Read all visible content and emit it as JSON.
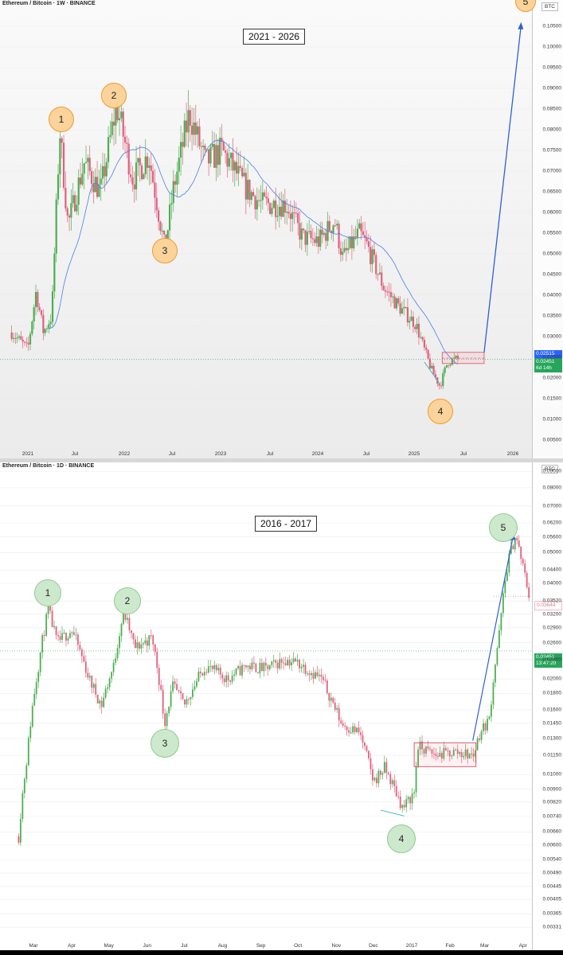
{
  "panels": [
    {
      "header": "Ethereum / Bitcoin · 1W · BINANCE",
      "range_label": "2021 - 2026",
      "unit": "BTC",
      "last_price": "0.02515",
      "current_price": "0.02451",
      "countdown": "6d 14h",
      "wave_labels": [
        "1",
        "2",
        "3",
        "4",
        "5"
      ]
    },
    {
      "header": "Ethereum / Bitcoin · 1D · BINANCE",
      "range_label": "2016 - 2017",
      "unit": "BTC",
      "last_price": "0.03644",
      "current_price": "0.02451",
      "countdown": "13:47:20",
      "wave_labels": [
        "1",
        "2",
        "3",
        "4",
        "5"
      ]
    }
  ],
  "chart_data": [
    {
      "type": "candlestick",
      "title": "Ethereum / Bitcoin · 1W · BINANCE",
      "annotation": "2021 - 2026",
      "y_unit": "BTC",
      "y_ticks": [
        "0.10500",
        "0.10000",
        "0.09500",
        "0.09000",
        "0.08500",
        "0.08000",
        "0.07500",
        "0.07000",
        "0.06500",
        "0.06000",
        "0.05500",
        "0.05000",
        "0.04500",
        "0.04000",
        "0.03500",
        "0.03000",
        "0.02500",
        "0.02000",
        "0.01500",
        "0.01000",
        "0.00500"
      ],
      "x_ticks": [
        "2021",
        "Jul",
        "2022",
        "Jul",
        "2023",
        "Jul",
        "2024",
        "Jul",
        "2025",
        "Jul",
        "2026"
      ],
      "price_path": [
        [
          "2020-11",
          0.031
        ],
        [
          "2021-01",
          0.027
        ],
        [
          "2021-02",
          0.041
        ],
        [
          "2021-03",
          0.031
        ],
        [
          "2021-04",
          0.035
        ],
        [
          "2021-05",
          0.08
        ],
        [
          "2021-06",
          0.057
        ],
        [
          "2021-08",
          0.072
        ],
        [
          "2021-10",
          0.065
        ],
        [
          "2021-12",
          0.086
        ],
        [
          "2022-02",
          0.068
        ],
        [
          "2022-04",
          0.074
        ],
        [
          "2022-06",
          0.051
        ],
        [
          "2022-07",
          0.065
        ],
        [
          "2022-09",
          0.084
        ],
        [
          "2022-11",
          0.072
        ],
        [
          "2023-01",
          0.075
        ],
        [
          "2023-04",
          0.066
        ],
        [
          "2023-06",
          0.062
        ],
        [
          "2023-09",
          0.062
        ],
        [
          "2023-11",
          0.054
        ],
        [
          "2024-01",
          0.053
        ],
        [
          "2024-03",
          0.058
        ],
        [
          "2024-04",
          0.049
        ],
        [
          "2024-06",
          0.055
        ],
        [
          "2024-07",
          0.052
        ],
        [
          "2024-09",
          0.042
        ],
        [
          "2024-11",
          0.037
        ],
        [
          "2025-01",
          0.033
        ],
        [
          "2025-02",
          0.027
        ],
        [
          "2025-03",
          0.022
        ],
        [
          "2025-04",
          0.018
        ],
        [
          "2025-05",
          0.024
        ],
        [
          "2025-06",
          0.0245
        ]
      ],
      "wave_points": [
        [
          "2021-05",
          0.0785
        ],
        [
          "2021-12",
          0.0862
        ],
        [
          "2022-06",
          0.0508
        ],
        [
          "2025-04",
          0.0182
        ],
        [
          "2026-02",
          0.106
        ]
      ],
      "current_price": 0.02451,
      "last_price": 0.02515
    },
    {
      "type": "candlestick",
      "title": "Ethereum / Bitcoin · 1D · BINANCE",
      "annotation": "2016 - 2017",
      "y_unit": "BTC",
      "y_scale": "log",
      "y_ticks": [
        "0.09000",
        "0.08000",
        "0.07000",
        "0.06200",
        "0.05600",
        "0.05000",
        "0.04400",
        "0.04000",
        "0.03520",
        "0.03200",
        "0.02900",
        "0.02600",
        "0.02300",
        "0.02000",
        "0.01800",
        "0.01600",
        "0.01450",
        "0.01300",
        "0.01150",
        "0.01000",
        "0.00900",
        "0.00820",
        "0.00740",
        "0.00660",
        "0.00600",
        "0.00540",
        "0.00490",
        "0.00445",
        "0.00405",
        "0.00365",
        "0.00331"
      ],
      "x_ticks": [
        "Mar",
        "Apr",
        "May",
        "Jun",
        "Jul",
        "Aug",
        "Sep",
        "Oct",
        "Nov",
        "Dec",
        "2017",
        "Feb",
        "Mar",
        "Apr"
      ],
      "price_path": [
        [
          "2016-02-18",
          0.0064
        ],
        [
          "2016-02-25",
          0.0115
        ],
        [
          "2016-03-05",
          0.022
        ],
        [
          "2016-03-13",
          0.033
        ],
        [
          "2016-03-20",
          0.026
        ],
        [
          "2016-04-01",
          0.0285
        ],
        [
          "2016-04-15",
          0.02
        ],
        [
          "2016-04-25",
          0.0165
        ],
        [
          "2016-05-05",
          0.022
        ],
        [
          "2016-05-13",
          0.0325
        ],
        [
          "2016-05-22",
          0.025
        ],
        [
          "2016-06-05",
          0.027
        ],
        [
          "2016-06-15",
          0.0145
        ],
        [
          "2016-06-22",
          0.019
        ],
        [
          "2016-07-01",
          0.0165
        ],
        [
          "2016-07-18",
          0.022
        ],
        [
          "2016-08-05",
          0.02
        ],
        [
          "2016-08-20",
          0.022
        ],
        [
          "2016-09-05",
          0.0215
        ],
        [
          "2016-09-20",
          0.023
        ],
        [
          "2016-10-01",
          0.0225
        ],
        [
          "2016-10-20",
          0.02
        ],
        [
          "2016-11-05",
          0.0145
        ],
        [
          "2016-11-20",
          0.0135
        ],
        [
          "2016-12-01",
          0.0095
        ],
        [
          "2016-12-10",
          0.0105
        ],
        [
          "2016-12-25",
          0.0078
        ],
        [
          "2017-01-03",
          0.0088
        ],
        [
          "2017-01-06",
          0.0123
        ],
        [
          "2017-01-20",
          0.0115
        ],
        [
          "2017-02-05",
          0.0118
        ],
        [
          "2017-02-20",
          0.0115
        ],
        [
          "2017-02-25",
          0.0135
        ],
        [
          "2017-03-05",
          0.015
        ],
        [
          "2017-03-13",
          0.028
        ],
        [
          "2017-03-20",
          0.047
        ],
        [
          "2017-03-26",
          0.0565
        ],
        [
          "2017-04-01",
          0.045
        ],
        [
          "2017-04-06",
          0.0365
        ]
      ],
      "wave_points": [
        [
          "2016-03-14",
          0.0343
        ],
        [
          "2016-05-13",
          0.0325
        ],
        [
          "2016-06-15",
          0.0143
        ],
        [
          "2016-12-26",
          0.0075
        ],
        [
          "2017-03-24",
          0.0575
        ]
      ],
      "current_price": 0.02451,
      "last_price": 0.03644
    }
  ]
}
